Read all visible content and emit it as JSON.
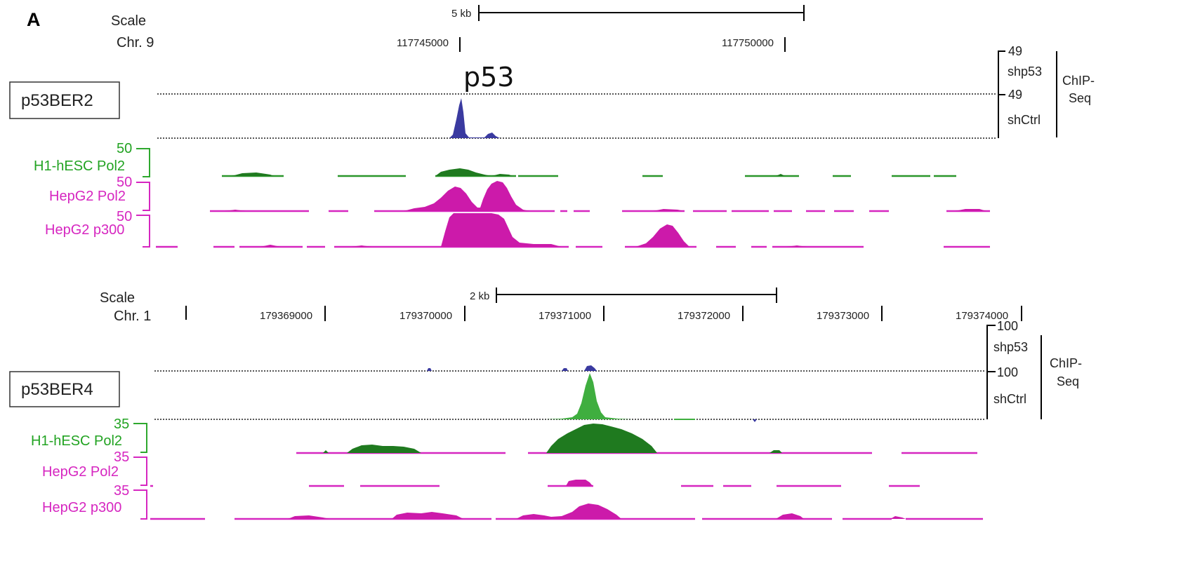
{
  "panel_letter": "A",
  "colors": {
    "navy": "#3a3aa0",
    "green_dark": "#1f7a1f",
    "green_label": "#2ea82e",
    "green_light": "#3fae3f",
    "magenta": "#cc1aaa",
    "magenta_label": "#d626c0",
    "dotted": "#555555"
  },
  "top": {
    "scale_label": "Scale",
    "chr_label": "Chr. 9",
    "scale_bar_label": "5 kb",
    "positions": [
      "117745000",
      "117750000"
    ],
    "peak_annotation": "p53",
    "region_box": "p53BER2",
    "axis_max_chip_top": "49",
    "sample_top": "shp53",
    "axis_max_chip_bottom": "49",
    "sample_bottom": "shCtrl",
    "assay": [
      "ChIP-",
      "Seq"
    ],
    "tracks": [
      {
        "name": "H1-hESC Pol2",
        "max": "50"
      },
      {
        "name": "HepG2 Pol2",
        "max": "50"
      },
      {
        "name": "HepG2 p300",
        "max": "50"
      }
    ]
  },
  "bottom": {
    "scale_label": "Scale",
    "chr_label": "Chr. 1",
    "scale_bar_label": "2 kb",
    "positions": [
      "179369000",
      "179370000",
      "179371000",
      "179372000",
      "179373000",
      "179374000"
    ],
    "region_box": "p53BER4",
    "axis_max_chip_top": "100",
    "sample_top": "shp53",
    "axis_max_chip_bottom": "100",
    "sample_bottom": "shCtrl",
    "assay": [
      "ChIP-",
      "Seq"
    ],
    "tracks": [
      {
        "name": "H1-hESC Pol2",
        "max": "35"
      },
      {
        "name": "HepG2 Pol2",
        "max": "35"
      },
      {
        "name": "HepG2 p300",
        "max": "35"
      }
    ]
  }
}
